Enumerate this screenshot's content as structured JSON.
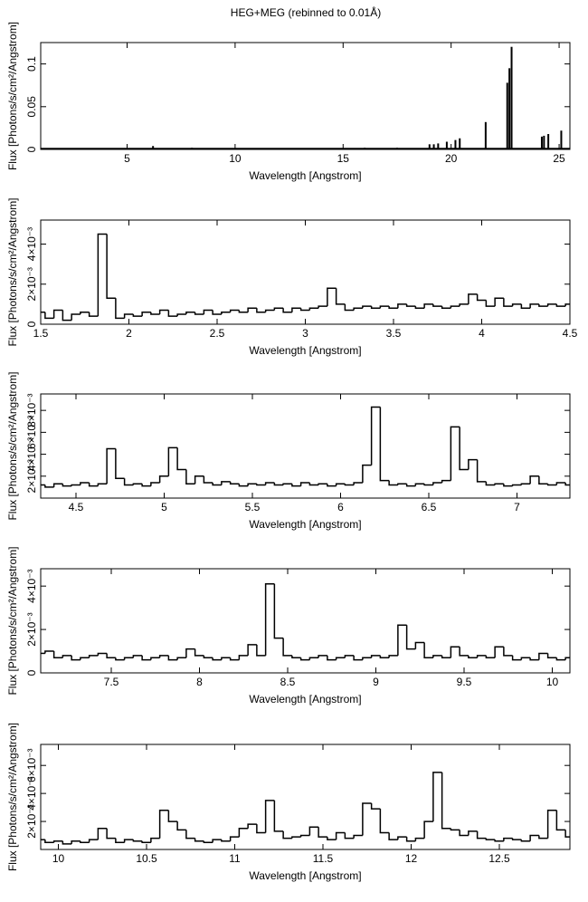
{
  "chart_data": [
    {
      "type": "bar",
      "title": "HEG+MEG (rebinned to 0.01Å)",
      "xlabel": "Wavelength [Angstrom]",
      "ylabel": "Flux [Photons/s/cm²/Angstrom]",
      "x": [
        2,
        4,
        6.2,
        8,
        10,
        12,
        14,
        16,
        17.5,
        19.0,
        19.2,
        19.4,
        19.8,
        20.2,
        20.4,
        21.6,
        22.6,
        22.7,
        22.8,
        24.2,
        24.3,
        24.5,
        25.1
      ],
      "values": [
        0.001,
        0.001,
        0.004,
        0.002,
        0.001,
        0.001,
        0.001,
        0.002,
        0.002,
        0.006,
        0.006,
        0.007,
        0.009,
        0.011,
        0.013,
        0.032,
        0.078,
        0.095,
        0.12,
        0.015,
        0.016,
        0.018,
        0.022
      ],
      "xlim": [
        1,
        25.5
      ],
      "ylim": [
        0,
        0.125
      ],
      "xticks": [
        5,
        10,
        15,
        20,
        25
      ],
      "yticks": [
        0,
        0.05,
        0.1
      ]
    },
    {
      "type": "step",
      "xlabel": "Wavelength [Angstrom]",
      "ylabel": "Flux [Photons/s/cm²/Angstrom]",
      "x": [
        1.5,
        1.55,
        1.6,
        1.65,
        1.7,
        1.75,
        1.8,
        1.85,
        1.9,
        1.95,
        2.0,
        2.05,
        2.1,
        2.15,
        2.2,
        2.25,
        2.3,
        2.35,
        2.4,
        2.45,
        2.5,
        2.55,
        2.6,
        2.65,
        2.7,
        2.75,
        2.8,
        2.85,
        2.9,
        2.95,
        3.0,
        3.05,
        3.1,
        3.15,
        3.2,
        3.25,
        3.3,
        3.35,
        3.4,
        3.45,
        3.5,
        3.55,
        3.6,
        3.65,
        3.7,
        3.75,
        3.8,
        3.85,
        3.9,
        3.95,
        4.0,
        4.05,
        4.1,
        4.15,
        4.2,
        4.25,
        4.3,
        4.35,
        4.4,
        4.45,
        4.5
      ],
      "values": [
        0.0006,
        0.0003,
        0.0007,
        0.0002,
        0.0005,
        0.0006,
        0.0004,
        0.0045,
        0.0013,
        0.0003,
        0.0005,
        0.0004,
        0.0006,
        0.0005,
        0.0007,
        0.0004,
        0.0005,
        0.0006,
        0.0005,
        0.0007,
        0.0005,
        0.0006,
        0.0007,
        0.0006,
        0.0008,
        0.0006,
        0.0007,
        0.0008,
        0.0006,
        0.0008,
        0.0007,
        0.0008,
        0.0009,
        0.0018,
        0.001,
        0.0007,
        0.0008,
        0.0009,
        0.0008,
        0.0009,
        0.0008,
        0.001,
        0.0009,
        0.0008,
        0.001,
        0.0009,
        0.0008,
        0.0009,
        0.001,
        0.0015,
        0.0012,
        0.0009,
        0.0013,
        0.0009,
        0.001,
        0.0008,
        0.001,
        0.0009,
        0.001,
        0.0009,
        0.001
      ],
      "xlim": [
        1.5,
        4.5
      ],
      "ylim": [
        0,
        0.0052
      ],
      "xticks": [
        1.5,
        2,
        2.5,
        3,
        3.5,
        4,
        4.5
      ],
      "yticks": [
        0,
        {
          "value": 0.002,
          "label": "2×10⁻³"
        },
        {
          "value": 0.004,
          "label": "4×10⁻³"
        }
      ]
    },
    {
      "type": "step",
      "xlabel": "Wavelength [Angstrom]",
      "ylabel": "Flux [Photons/s/cm²/Angstrom]",
      "x": [
        4.3,
        4.35,
        4.4,
        4.45,
        4.5,
        4.55,
        4.6,
        4.65,
        4.7,
        4.75,
        4.8,
        4.85,
        4.9,
        4.95,
        5.0,
        5.05,
        5.1,
        5.15,
        5.2,
        5.25,
        5.3,
        5.35,
        5.4,
        5.45,
        5.5,
        5.55,
        5.6,
        5.65,
        5.7,
        5.75,
        5.8,
        5.85,
        5.9,
        5.95,
        6.0,
        6.05,
        6.1,
        6.15,
        6.2,
        6.25,
        6.3,
        6.35,
        6.4,
        6.45,
        6.5,
        6.55,
        6.6,
        6.65,
        6.7,
        6.75,
        6.8,
        6.85,
        6.9,
        6.95,
        7.0,
        7.05,
        7.1,
        7.15,
        7.2,
        7.25,
        7.3
      ],
      "values": [
        0.0012,
        0.001,
        0.0013,
        0.0011,
        0.0012,
        0.0014,
        0.0011,
        0.0013,
        0.0045,
        0.0018,
        0.0012,
        0.0013,
        0.0011,
        0.0014,
        0.002,
        0.0046,
        0.0026,
        0.0013,
        0.002,
        0.0014,
        0.0012,
        0.0015,
        0.0013,
        0.0011,
        0.0013,
        0.0012,
        0.0014,
        0.0012,
        0.0013,
        0.0011,
        0.0014,
        0.0012,
        0.0013,
        0.0011,
        0.0013,
        0.0012,
        0.0014,
        0.003,
        0.0083,
        0.0016,
        0.0012,
        0.0013,
        0.0011,
        0.0013,
        0.0012,
        0.0014,
        0.0016,
        0.0065,
        0.0026,
        0.0035,
        0.0015,
        0.0012,
        0.0013,
        0.0011,
        0.0012,
        0.0013,
        0.002,
        0.0013,
        0.0012,
        0.0014,
        0.0012
      ],
      "xlim": [
        4.3,
        7.3
      ],
      "ylim": [
        0,
        0.0095
      ],
      "xticks": [
        4.5,
        5,
        5.5,
        6,
        6.5,
        7
      ],
      "yticks": [
        {
          "value": 0.002,
          "label": "2×10⁻³"
        },
        {
          "value": 0.004,
          "label": "4×10⁻³"
        },
        {
          "value": 0.006,
          "label": "6×10⁻³"
        },
        {
          "value": 0.008,
          "label": "8×10⁻³"
        }
      ]
    },
    {
      "type": "step",
      "xlabel": "Wavelength [Angstrom]",
      "ylabel": "Flux [Photons/s/cm²/Angstrom]",
      "x": [
        7.1,
        7.15,
        7.2,
        7.25,
        7.3,
        7.35,
        7.4,
        7.45,
        7.5,
        7.55,
        7.6,
        7.65,
        7.7,
        7.75,
        7.8,
        7.85,
        7.9,
        7.95,
        8.0,
        8.05,
        8.1,
        8.15,
        8.2,
        8.25,
        8.3,
        8.35,
        8.4,
        8.45,
        8.5,
        8.55,
        8.6,
        8.65,
        8.7,
        8.75,
        8.8,
        8.85,
        8.9,
        8.95,
        9.0,
        9.05,
        9.1,
        9.15,
        9.2,
        9.25,
        9.3,
        9.35,
        9.4,
        9.45,
        9.5,
        9.55,
        9.6,
        9.65,
        9.7,
        9.75,
        9.8,
        9.85,
        9.9,
        9.95,
        10.0,
        10.05,
        10.1
      ],
      "values": [
        0.0009,
        0.001,
        0.0007,
        0.0008,
        0.0006,
        0.0007,
        0.0008,
        0.0009,
        0.0007,
        0.0006,
        0.0007,
        0.0008,
        0.0006,
        0.0007,
        0.0008,
        0.0006,
        0.0007,
        0.0011,
        0.0008,
        0.0007,
        0.0006,
        0.0007,
        0.0006,
        0.0008,
        0.0013,
        0.0008,
        0.0041,
        0.0016,
        0.0008,
        0.0007,
        0.0006,
        0.0007,
        0.0008,
        0.0006,
        0.0007,
        0.0008,
        0.0006,
        0.0007,
        0.0008,
        0.0007,
        0.0008,
        0.0022,
        0.0011,
        0.0014,
        0.0007,
        0.0008,
        0.0007,
        0.0012,
        0.0008,
        0.0007,
        0.0008,
        0.0007,
        0.0012,
        0.0008,
        0.0006,
        0.0007,
        0.0006,
        0.0009,
        0.0007,
        0.0006,
        0.0007
      ],
      "xlim": [
        7.1,
        10.1
      ],
      "ylim": [
        0,
        0.0048
      ],
      "xticks": [
        7.5,
        8,
        8.5,
        9,
        9.5,
        10
      ],
      "yticks": [
        0,
        {
          "value": 0.002,
          "label": "2×10⁻³"
        },
        {
          "value": 0.004,
          "label": "4×10⁻³"
        }
      ]
    },
    {
      "type": "step",
      "xlabel": "Wavelength [Angstrom]",
      "ylabel": "Flux [Photons/s/cm²/Angstrom]",
      "x": [
        9.9,
        9.95,
        10.0,
        10.05,
        10.1,
        10.15,
        10.2,
        10.25,
        10.3,
        10.35,
        10.4,
        10.45,
        10.5,
        10.55,
        10.6,
        10.65,
        10.7,
        10.75,
        10.8,
        10.85,
        10.9,
        10.95,
        11.0,
        11.05,
        11.1,
        11.15,
        11.2,
        11.25,
        11.3,
        11.35,
        11.4,
        11.45,
        11.5,
        11.55,
        11.6,
        11.65,
        11.7,
        11.75,
        11.8,
        11.85,
        11.9,
        11.95,
        12.0,
        12.05,
        12.1,
        12.15,
        12.2,
        12.25,
        12.3,
        12.35,
        12.4,
        12.45,
        12.5,
        12.55,
        12.6,
        12.65,
        12.7,
        12.75,
        12.8,
        12.85,
        12.9
      ],
      "values": [
        0.0007,
        0.0005,
        0.0006,
        0.0004,
        0.0006,
        0.0005,
        0.0007,
        0.0015,
        0.0008,
        0.0005,
        0.0007,
        0.0006,
        0.0005,
        0.0008,
        0.0028,
        0.002,
        0.0014,
        0.0008,
        0.0006,
        0.0005,
        0.0007,
        0.0006,
        0.0009,
        0.0015,
        0.0018,
        0.0012,
        0.0035,
        0.0013,
        0.0008,
        0.0009,
        0.001,
        0.0016,
        0.0009,
        0.0007,
        0.0012,
        0.0008,
        0.001,
        0.0033,
        0.0029,
        0.0012,
        0.0007,
        0.0009,
        0.0006,
        0.0008,
        0.002,
        0.0055,
        0.0015,
        0.0014,
        0.001,
        0.0013,
        0.0008,
        0.0007,
        0.0006,
        0.0008,
        0.0007,
        0.0006,
        0.001,
        0.0008,
        0.0028,
        0.0014,
        0.0009
      ],
      "xlim": [
        9.9,
        12.9
      ],
      "ylim": [
        0,
        0.0075
      ],
      "xticks": [
        10,
        10.5,
        11,
        11.5,
        12,
        12.5
      ],
      "yticks": [
        {
          "value": 0.002,
          "label": "2×10⁻³"
        },
        {
          "value": 0.004,
          "label": "4×10⁻³"
        },
        {
          "value": 0.006,
          "label": "6×10⁻³"
        }
      ]
    }
  ]
}
